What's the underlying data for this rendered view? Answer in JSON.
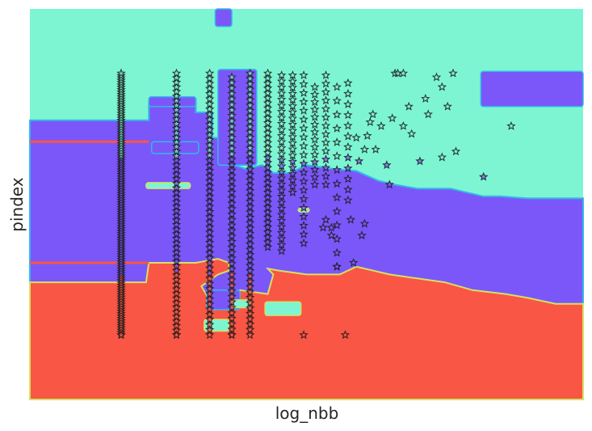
{
  "chart_data": {
    "type": "scatter",
    "title": "",
    "xlabel": "log_nbb",
    "ylabel": "pindex",
    "xlim": [
      0,
      10
    ],
    "ylim": [
      0,
      10
    ],
    "grid": false,
    "regions": [
      {
        "class": "teal",
        "color": "#7df5d3"
      },
      {
        "class": "purple",
        "color": "#7b57f9"
      },
      {
        "class": "red",
        "color": "#f95645"
      }
    ],
    "boundary_purple_top": [
      [
        0.0,
        7.15
      ],
      [
        2.15,
        7.15
      ],
      [
        2.15,
        7.6
      ],
      [
        2.2,
        7.6
      ],
      [
        2.2,
        7.7
      ],
      [
        3.0,
        7.7
      ],
      [
        3.0,
        7.35
      ],
      [
        3.3,
        7.35
      ],
      [
        3.3,
        6.7
      ],
      [
        3.6,
        6.7
      ],
      [
        3.6,
        6.3
      ],
      [
        3.7,
        6.3
      ],
      [
        3.7,
        6.0
      ],
      [
        3.9,
        5.9
      ],
      [
        4.2,
        6.0
      ],
      [
        4.4,
        5.8
      ],
      [
        4.7,
        5.8
      ],
      [
        5.0,
        6.0
      ],
      [
        5.5,
        5.9
      ],
      [
        5.9,
        5.85
      ],
      [
        6.3,
        5.6
      ],
      [
        6.6,
        5.5
      ],
      [
        7.0,
        5.4
      ],
      [
        7.6,
        5.4
      ],
      [
        8.2,
        5.2
      ],
      [
        8.5,
        5.2
      ],
      [
        9.0,
        5.15
      ],
      [
        9.5,
        5.15
      ],
      [
        10.0,
        5.15
      ]
    ],
    "boundary_red_top": [
      [
        0.0,
        3.0
      ],
      [
        2.1,
        3.0
      ],
      [
        2.15,
        3.5
      ],
      [
        3.0,
        3.5
      ],
      [
        3.4,
        3.6
      ],
      [
        3.6,
        3.5
      ],
      [
        3.6,
        3.3
      ],
      [
        3.4,
        3.2
      ],
      [
        3.1,
        2.9
      ],
      [
        3.35,
        2.3
      ],
      [
        3.7,
        2.4
      ],
      [
        3.8,
        2.8
      ],
      [
        4.3,
        2.7
      ],
      [
        4.4,
        3.2
      ],
      [
        4.3,
        3.35
      ],
      [
        4.5,
        3.3
      ],
      [
        5.0,
        3.2
      ],
      [
        5.6,
        3.2
      ],
      [
        5.9,
        3.4
      ],
      [
        6.5,
        3.2
      ],
      [
        7.0,
        3.1
      ],
      [
        7.5,
        3.0
      ],
      [
        8.0,
        2.8
      ],
      [
        8.6,
        2.7
      ],
      [
        9.0,
        2.6
      ],
      [
        9.5,
        2.45
      ],
      [
        10.0,
        2.45
      ]
    ],
    "teal_patches": [
      {
        "x": [
          3.15,
          3.6
        ],
        "y": [
          1.75,
          2.05
        ]
      },
      {
        "x": [
          4.25,
          4.9
        ],
        "y": [
          2.15,
          2.5
        ]
      },
      {
        "x": [
          3.65,
          4.0
        ],
        "y": [
          2.35,
          2.55
        ]
      },
      {
        "x": [
          2.1,
          2.9
        ],
        "y": [
          5.4,
          5.55
        ]
      },
      {
        "x": [
          4.85,
          5.05
        ],
        "y": [
          4.8,
          4.9
        ]
      }
    ],
    "purple_patches": [
      {
        "x": [
          2.15,
          3.0
        ],
        "y": [
          7.5,
          7.75
        ]
      },
      {
        "x": [
          8.15,
          10.0
        ],
        "y": [
          7.5,
          8.4
        ]
      },
      {
        "x": [
          2.2,
          3.05
        ],
        "y": [
          6.3,
          6.6
        ]
      },
      {
        "x": [
          3.4,
          4.1
        ],
        "y": [
          6.0,
          8.45
        ]
      },
      {
        "x": [
          3.35,
          3.65
        ],
        "y": [
          9.55,
          10.0
        ]
      },
      {
        "x": [
          3.2,
          3.8
        ],
        "y": [
          2.3,
          2.8
        ]
      }
    ],
    "red_lines": [
      {
        "x": [
          0.0,
          2.15
        ],
        "y": 6.6
      },
      {
        "x": [
          0.0,
          2.15
        ],
        "y": 3.5
      }
    ],
    "series": [
      {
        "x": 1.65,
        "ymin": 1.65,
        "ymax": 8.35,
        "n": 112
      },
      {
        "x": 2.65,
        "ymin": 1.65,
        "ymax": 8.35,
        "n": 58
      },
      {
        "x": 3.25,
        "ymin": 1.65,
        "ymax": 8.35,
        "n": 52
      },
      {
        "x": 3.65,
        "ymin": 1.65,
        "ymax": 8.25,
        "n": 48
      },
      {
        "x": 3.98,
        "ymin": 1.65,
        "ymax": 8.35,
        "n": 50
      },
      {
        "x": 4.3,
        "ymin": 3.9,
        "ymax": 8.35,
        "n": 36
      },
      {
        "x": 4.55,
        "ymin": 3.8,
        "ymax": 8.3,
        "n": 30
      },
      {
        "x": 4.75,
        "ymin": 5.3,
        "ymax": 8.3,
        "n": 20
      },
      {
        "x": 4.95,
        "ymin": 4.0,
        "ymax": 8.3,
        "n": 20
      },
      {
        "x": 5.15,
        "ymin": 5.5,
        "ymax": 8.0,
        "n": 14
      },
      {
        "x": 5.35,
        "ymin": 5.5,
        "ymax": 8.3,
        "n": 14
      },
      {
        "x": 5.55,
        "ymin": 3.4,
        "ymax": 8.0,
        "n": 14
      },
      {
        "x": 5.75,
        "ymin": 5.1,
        "ymax": 8.1,
        "n": 12
      }
    ],
    "points": [
      [
        5.9,
        6.7
      ],
      [
        5.95,
        6.1
      ],
      [
        6.05,
        6.4
      ],
      [
        6.1,
        6.75
      ],
      [
        6.15,
        7.1
      ],
      [
        6.2,
        7.3
      ],
      [
        6.25,
        6.4
      ],
      [
        6.35,
        7.0
      ],
      [
        6.45,
        6.0
      ],
      [
        6.55,
        7.2
      ],
      [
        6.6,
        8.35
      ],
      [
        6.65,
        8.35
      ],
      [
        6.75,
        8.35
      ],
      [
        6.75,
        7.0
      ],
      [
        6.85,
        7.5
      ],
      [
        6.9,
        6.8
      ],
      [
        7.05,
        6.1
      ],
      [
        7.15,
        7.7
      ],
      [
        7.2,
        7.3
      ],
      [
        7.55,
        7.5
      ],
      [
        7.65,
        8.35
      ],
      [
        7.7,
        6.35
      ],
      [
        8.2,
        5.7
      ],
      [
        8.7,
        7.0
      ],
      [
        7.45,
        6.2
      ],
      [
        6.5,
        5.5
      ],
      [
        6.05,
        4.5
      ],
      [
        6.0,
        4.2
      ],
      [
        5.85,
        3.5
      ],
      [
        5.8,
        4.6
      ],
      [
        5.55,
        3.4
      ],
      [
        5.45,
        4.2
      ],
      [
        5.45,
        4.4
      ],
      [
        5.3,
        4.4
      ],
      [
        5.35,
        4.6
      ],
      [
        5.7,
        1.65
      ],
      [
        4.95,
        1.65
      ],
      [
        3.65,
        1.65
      ],
      [
        2.65,
        1.65
      ],
      [
        1.65,
        1.65
      ],
      [
        7.35,
        8.25
      ],
      [
        7.45,
        8.0
      ]
    ]
  }
}
